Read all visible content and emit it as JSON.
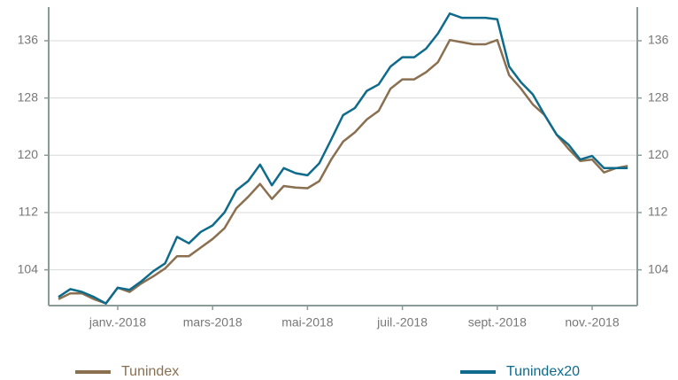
{
  "chart_data": {
    "type": "line",
    "categories": [
      null,
      null,
      null,
      null,
      null,
      "janv.-2018",
      null,
      null,
      null,
      null,
      null,
      null,
      null,
      "mars-2018",
      null,
      null,
      null,
      null,
      null,
      null,
      null,
      "mai-2018",
      null,
      null,
      null,
      null,
      null,
      null,
      null,
      "juil.-2018",
      null,
      null,
      null,
      null,
      null,
      null,
      null,
      "sept.-2018",
      null,
      null,
      null,
      null,
      null,
      null,
      null,
      "nov.-2018",
      null,
      null,
      null
    ],
    "series": [
      {
        "name": "Tunindex",
        "color": "#8a7050",
        "values": [
          99.9,
          100.7,
          100.7,
          99.9,
          99.3,
          101.5,
          100.9,
          102.1,
          103.1,
          104.2,
          105.9,
          105.9,
          107.1,
          108.3,
          109.8,
          112.6,
          114.2,
          116.0,
          113.9,
          115.7,
          115.5,
          115.4,
          116.4,
          119.4,
          121.9,
          123.2,
          125.0,
          126.2,
          129.3,
          130.6,
          130.6,
          131.6,
          133.0,
          136.1,
          135.8,
          135.5,
          135.5,
          136.1,
          131.2,
          129.3,
          127.1,
          125.6,
          122.9,
          120.9,
          119.2,
          119.4,
          117.6,
          118.2,
          118.5
        ]
      },
      {
        "name": "Tunindex20",
        "color": "#0e6b8c",
        "values": [
          100.2,
          101.3,
          100.9,
          100.2,
          99.3,
          101.5,
          101.2,
          102.4,
          103.8,
          104.9,
          108.6,
          107.7,
          109.3,
          110.2,
          112.0,
          115.1,
          116.4,
          118.7,
          115.8,
          118.2,
          117.5,
          117.2,
          118.9,
          122.2,
          125.6,
          126.6,
          129.0,
          129.9,
          132.4,
          133.7,
          133.7,
          134.9,
          137.0,
          139.8,
          139.2,
          139.2,
          139.2,
          139.0,
          132.4,
          130.2,
          128.5,
          125.6,
          122.9,
          121.5,
          119.4,
          119.9,
          118.2,
          118.2,
          118.2
        ]
      }
    ],
    "ylim": [
      99,
      140.7
    ],
    "yticks": [
      104,
      112,
      120,
      128,
      136
    ],
    "y2lim": [
      99,
      140.7
    ],
    "y2ticks": [
      104,
      112,
      120,
      128,
      136
    ],
    "grid": true,
    "legend": "bottom"
  }
}
